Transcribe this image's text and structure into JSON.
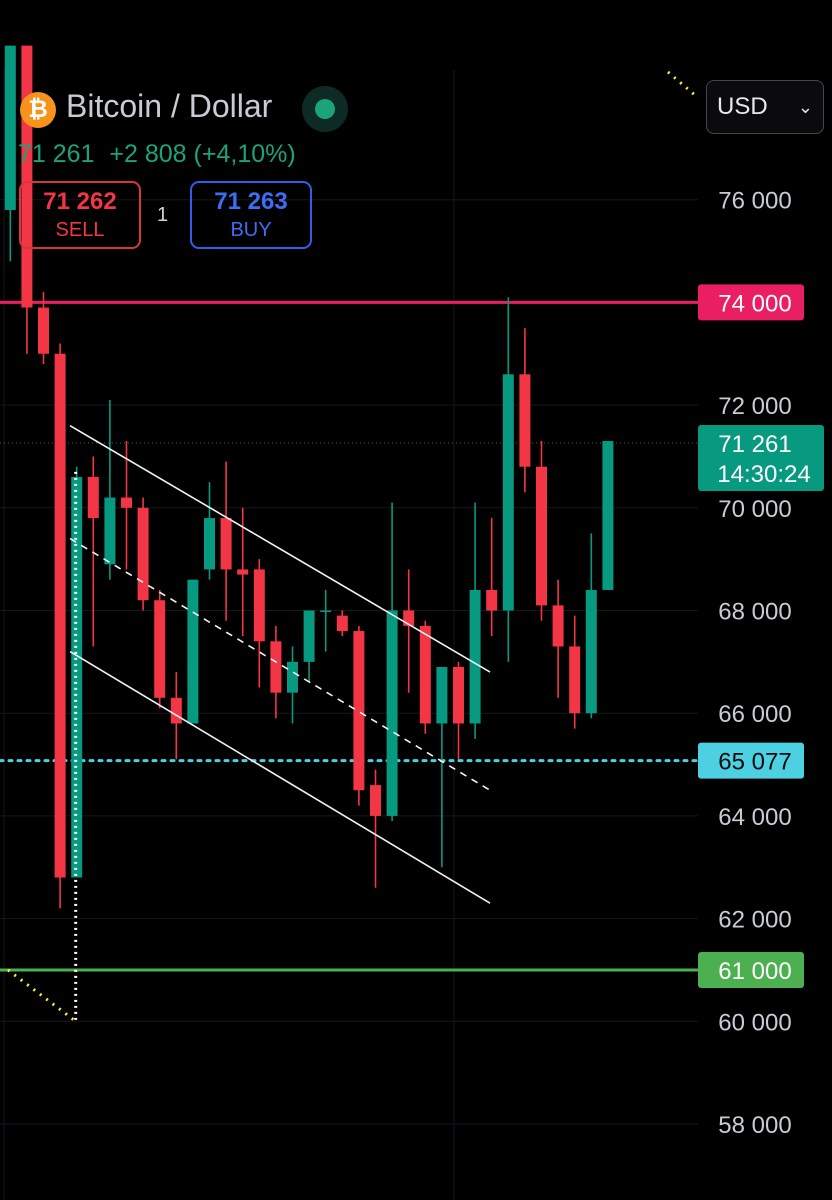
{
  "header": {
    "logo_symbol": "₿",
    "title": "Bitcoin / Dollar",
    "last_price": "71 261",
    "change": "+2 808",
    "change_pct": "(+4,10%)",
    "status_color": "#1ba37a"
  },
  "trade": {
    "sell_price": "71 262",
    "sell_label": "SELL",
    "quantity": "1",
    "buy_price": "71 263",
    "buy_label": "BUY"
  },
  "currency_select": {
    "value": "USD",
    "chevron_icon": "chevron-down-icon"
  },
  "colors": {
    "up": "#089981",
    "down": "#f23645",
    "resistance": "#e91e63",
    "support": "#4caf50",
    "dotted": "#4dd0e1"
  },
  "chart_data": {
    "type": "candlestick",
    "y_axis": {
      "ticks": [
        58000,
        60000,
        62000,
        64000,
        66000,
        68000,
        70000,
        72000,
        74000,
        76000
      ],
      "tick_labels": [
        "58 000",
        "60 000",
        "62 000",
        "64 000",
        "66 000",
        "68 000",
        "70 000",
        "72 000",
        "74 000",
        "76 000"
      ],
      "range": [
        57000,
        78500
      ]
    },
    "candles": [
      {
        "o": 75800,
        "h": 79000,
        "l": 74800,
        "c": 79000
      },
      {
        "o": 79000,
        "h": 79000,
        "l": 73000,
        "c": 73900
      },
      {
        "o": 73900,
        "h": 74200,
        "l": 72800,
        "c": 73000
      },
      {
        "o": 73000,
        "h": 73200,
        "l": 62200,
        "c": 62800
      },
      {
        "o": 62800,
        "h": 70800,
        "l": 62800,
        "c": 70600
      },
      {
        "o": 70600,
        "h": 71000,
        "l": 67300,
        "c": 69800
      },
      {
        "o": 68900,
        "h": 72100,
        "l": 68600,
        "c": 70200
      },
      {
        "o": 70200,
        "h": 71300,
        "l": 68800,
        "c": 70000
      },
      {
        "o": 70000,
        "h": 70200,
        "l": 68000,
        "c": 68200
      },
      {
        "o": 68200,
        "h": 68400,
        "l": 66100,
        "c": 66300
      },
      {
        "o": 66300,
        "h": 66800,
        "l": 65100,
        "c": 65800
      },
      {
        "o": 65800,
        "h": 68600,
        "l": 65800,
        "c": 68600
      },
      {
        "o": 68800,
        "h": 70500,
        "l": 68600,
        "c": 69800
      },
      {
        "o": 69800,
        "h": 70900,
        "l": 67800,
        "c": 68800
      },
      {
        "o": 68800,
        "h": 70000,
        "l": 67500,
        "c": 68700
      },
      {
        "o": 68800,
        "h": 69000,
        "l": 66500,
        "c": 67400
      },
      {
        "o": 67400,
        "h": 67700,
        "l": 65900,
        "c": 66400
      },
      {
        "o": 66400,
        "h": 67300,
        "l": 65800,
        "c": 67000
      },
      {
        "o": 67000,
        "h": 68000,
        "l": 66600,
        "c": 68000
      },
      {
        "o": 68000,
        "h": 68400,
        "l": 67200,
        "c": 68000
      },
      {
        "o": 67900,
        "h": 68000,
        "l": 67500,
        "c": 67600
      },
      {
        "o": 67600,
        "h": 67700,
        "l": 64200,
        "c": 64500
      },
      {
        "o": 64600,
        "h": 64900,
        "l": 62600,
        "c": 64000
      },
      {
        "o": 64000,
        "h": 70100,
        "l": 63900,
        "c": 68000
      },
      {
        "o": 68000,
        "h": 68800,
        "l": 66400,
        "c": 67700
      },
      {
        "o": 67700,
        "h": 67800,
        "l": 65600,
        "c": 65800
      },
      {
        "o": 65800,
        "h": 66800,
        "l": 63000,
        "c": 66900
      },
      {
        "o": 66900,
        "h": 67000,
        "l": 65100,
        "c": 65800
      },
      {
        "o": 65800,
        "h": 70100,
        "l": 65500,
        "c": 68400
      },
      {
        "o": 68400,
        "h": 69800,
        "l": 67500,
        "c": 68000
      },
      {
        "o": 68000,
        "h": 74100,
        "l": 67000,
        "c": 72600
      },
      {
        "o": 72600,
        "h": 73500,
        "l": 70300,
        "c": 70800
      },
      {
        "o": 70800,
        "h": 71300,
        "l": 67800,
        "c": 68100
      },
      {
        "o": 68100,
        "h": 68600,
        "l": 66300,
        "c": 67300
      },
      {
        "o": 67300,
        "h": 67900,
        "l": 65700,
        "c": 66000
      },
      {
        "o": 66000,
        "h": 69500,
        "l": 65900,
        "c": 68400
      },
      {
        "o": 68400,
        "h": 71300,
        "l": 68400,
        "c": 71300
      }
    ],
    "horizontal_levels": [
      {
        "value": 74000,
        "label": "74 000",
        "color": "#e91e63",
        "style": "solid"
      },
      {
        "value": 61000,
        "label": "61 000",
        "color": "#4caf50",
        "style": "solid"
      },
      {
        "value": 65077,
        "label": "65 077",
        "color": "#4dd0e1",
        "style": "dotted"
      }
    ],
    "current_price": {
      "value": 71261,
      "label": "71 261",
      "countdown": "14:30:24",
      "color": "#089981"
    },
    "channel_lines": [
      {
        "from": {
          "bar": 3.6,
          "y": 71600
        },
        "to": {
          "bar": 28.9,
          "y": 66800
        },
        "style": "solid"
      },
      {
        "from": {
          "bar": 3.6,
          "y": 69400
        },
        "to": {
          "bar": 28.9,
          "y": 64500
        },
        "style": "dashed"
      },
      {
        "from": {
          "bar": 3.6,
          "y": 67200
        },
        "to": {
          "bar": 28.9,
          "y": 62300
        },
        "style": "solid"
      }
    ],
    "grid": true,
    "legend": "none"
  }
}
